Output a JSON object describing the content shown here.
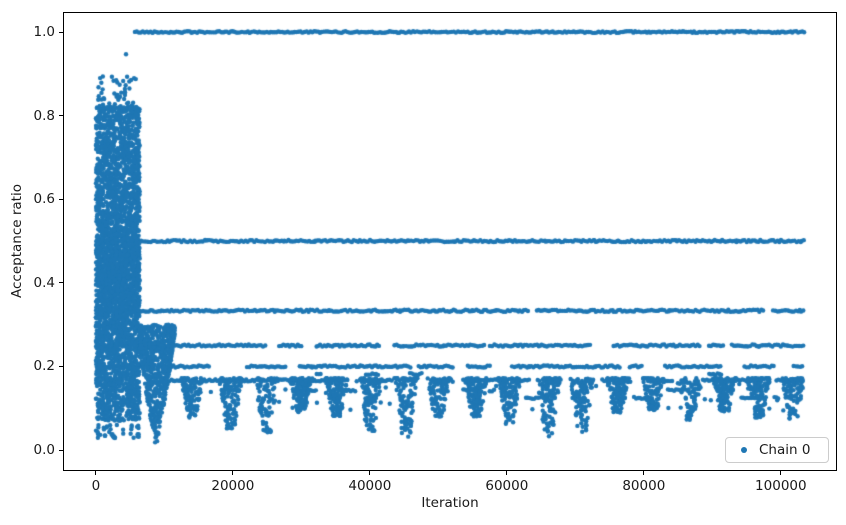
{
  "chart_data": {
    "type": "scatter",
    "title": "",
    "xlabel": "Iteration",
    "ylabel": "Acceptance ratio",
    "xlim": [
      -4800,
      108200
    ],
    "ylim": [
      -0.05,
      1.048
    ],
    "xticks": [
      0,
      20000,
      40000,
      60000,
      80000,
      100000
    ],
    "xtick_labels": [
      "0",
      "20000",
      "40000",
      "60000",
      "80000",
      "100000"
    ],
    "yticks": [
      0.0,
      0.2,
      0.4,
      0.6,
      0.8,
      1.0
    ],
    "ytick_labels": [
      "0.0",
      "0.2",
      "0.4",
      "0.6",
      "0.8",
      "1.0"
    ],
    "grid": false,
    "legend": {
      "label": "Chain 0",
      "position": "lower right"
    },
    "marker": {
      "color": "#1f77b4",
      "radius": 2.2
    },
    "colors": {
      "marker": "#1f77b4",
      "spine": "#000000",
      "text": "#1a1a1a",
      "legend_border": "#cccccc"
    },
    "description": "Acceptance ratio of MCMC Chain 0 vs iteration; ratios concentrate on rational values k/n producing horizontal bands, with a dense burn-in cluster before ~6400 iterations and periodic dip clusters afterwards.",
    "bands": [
      {
        "y": 1.0,
        "x_start": 5700,
        "x_end": 103400,
        "fill": 1.0
      },
      {
        "y": 0.5,
        "x_start": 150,
        "x_end": 103400,
        "fill": 0.97
      },
      {
        "y": 0.3333,
        "x_start": 400,
        "x_end": 103400,
        "fill": 0.95
      },
      {
        "y": 0.25,
        "x_start": 800,
        "x_end": 103400,
        "fill": 0.78
      },
      {
        "y": 0.2,
        "x_start": 1200,
        "x_end": 103400,
        "fill": 0.62
      },
      {
        "y": 0.1818,
        "x_start": 12000,
        "x_end": 103000,
        "fill": 0.1
      },
      {
        "y": 0.1667,
        "x_start": 1800,
        "x_end": 103400,
        "fill": 0.46
      },
      {
        "y": 0.1429,
        "x_start": 9000,
        "x_end": 103000,
        "fill": 0.26
      },
      {
        "y": 0.125,
        "x_start": 12000,
        "x_end": 103000,
        "fill": 0.15
      }
    ],
    "burn_in": {
      "x_start": 0,
      "x_end": 6400,
      "y_min": 0.05,
      "y_max": 0.82,
      "n_points": 3200,
      "fringe_y_max": 0.895,
      "n_fringe": 55,
      "n_low": 40,
      "outlier": [
        4400,
        0.947
      ]
    },
    "initial_funnel": {
      "x_start": 6400,
      "x_end": 11500,
      "y_top": 0.3,
      "y_bottom": 0.005,
      "center": 8800,
      "half_width": 2800,
      "n_points": 650
    },
    "dip_clusters": {
      "start_center": 14300,
      "spacing": 5150,
      "count": 18,
      "y_top": 0.172,
      "y_bottom_range": [
        0.03,
        0.095
      ],
      "half_width": 1700,
      "points_per_cluster": [
        70,
        135
      ]
    },
    "sparse_floor": {
      "x_start": 12500,
      "x_end": 103000,
      "y_min": 0.095,
      "y_max": 0.165,
      "step": 700,
      "prob": 0.45
    },
    "seed": 42
  }
}
